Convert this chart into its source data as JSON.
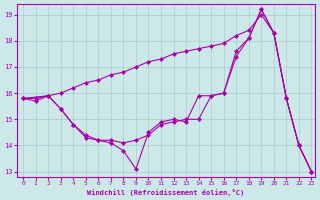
{
  "xlabel": "Windchill (Refroidissement éolien,°C)",
  "bg_color": "#cce8e8",
  "line_color": "#aa00aa",
  "grid_color": "#aacccc",
  "line1": {
    "x": [
      0,
      1,
      2,
      3,
      4,
      5,
      6,
      7,
      8,
      9,
      10,
      11,
      12,
      13,
      14,
      15,
      16,
      17,
      18,
      19,
      20,
      21,
      22,
      23
    ],
    "y": [
      15.8,
      15.8,
      15.9,
      16.0,
      16.2,
      16.4,
      16.5,
      16.7,
      16.8,
      17.0,
      17.2,
      17.3,
      17.5,
      17.6,
      17.7,
      17.8,
      17.9,
      18.2,
      18.4,
      19.0,
      18.3,
      15.8,
      14.0,
      13.0
    ]
  },
  "line2": {
    "x": [
      0,
      1,
      2,
      3,
      4,
      5,
      6,
      7,
      8,
      9,
      10,
      11,
      12,
      13,
      14,
      15,
      16,
      17,
      18,
      19,
      20,
      21,
      22,
      23
    ],
    "y": [
      15.8,
      15.7,
      15.9,
      15.4,
      14.8,
      14.4,
      14.2,
      14.2,
      14.1,
      14.2,
      14.4,
      14.8,
      14.9,
      15.0,
      15.0,
      15.9,
      16.0,
      17.6,
      18.1,
      19.2,
      18.3,
      15.8,
      14.0,
      13.0
    ]
  },
  "line3": {
    "x": [
      0,
      2,
      3,
      4,
      5,
      6,
      7,
      8,
      9,
      10,
      11,
      12,
      13,
      14,
      15,
      16,
      17,
      18,
      19,
      20,
      21,
      22,
      23
    ],
    "y": [
      15.8,
      15.9,
      15.4,
      14.8,
      14.3,
      14.2,
      14.1,
      13.8,
      13.1,
      14.5,
      14.9,
      15.0,
      14.9,
      15.9,
      15.9,
      16.0,
      17.4,
      18.1,
      19.2,
      18.3,
      15.8,
      14.0,
      13.0
    ]
  },
  "xlim": [
    -0.5,
    23.3
  ],
  "ylim": [
    12.8,
    19.4
  ],
  "xticks": [
    0,
    1,
    2,
    3,
    4,
    5,
    6,
    7,
    8,
    9,
    10,
    11,
    12,
    13,
    14,
    15,
    16,
    17,
    18,
    19,
    20,
    21,
    22,
    23
  ],
  "yticks": [
    13,
    14,
    15,
    16,
    17,
    18,
    19
  ]
}
